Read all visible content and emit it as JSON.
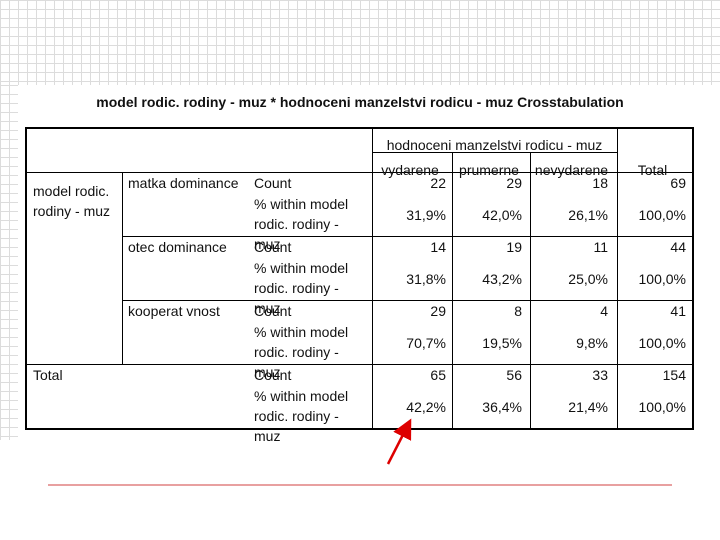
{
  "title": "model rodic. rodiny - muz * hodnoceni manzelstvi rodicu - muz Crosstabulation",
  "table": {
    "column_header": "hodnoceni manzelstvi rodicu - muz",
    "columns": [
      "vydarene",
      "prumerne",
      "nevydarene",
      "Total"
    ],
    "row_header": "model rodic. rodiny - muz",
    "groups": [
      {
        "label": "matka dominance",
        "rows": [
          {
            "stat": "Count",
            "cells": [
              "22",
              "29",
              "18",
              "69"
            ]
          },
          {
            "stat": "% within model rodic. rodiny - muz",
            "cells": [
              "31,9%",
              "42,0%",
              "26,1%",
              "100,0%"
            ]
          }
        ]
      },
      {
        "label": "otec dominance",
        "rows": [
          {
            "stat": "Count",
            "cells": [
              "14",
              "19",
              "11",
              "44"
            ]
          },
          {
            "stat": "% within model rodic. rodiny - muz",
            "cells": [
              "31,8%",
              "43,2%",
              "25,0%",
              "100,0%"
            ]
          }
        ]
      },
      {
        "label": "kooperat vnost",
        "rows": [
          {
            "stat": "Count",
            "cells": [
              "29",
              "8",
              "4",
              "41"
            ]
          },
          {
            "stat": "% within model rodic. rodiny - muz",
            "cells": [
              "70,7%",
              "19,5%",
              "9,8%",
              "100,0%"
            ]
          }
        ]
      },
      {
        "label": "Total",
        "rows": [
          {
            "stat": "Count",
            "cells": [
              "65",
              "56",
              "33",
              "154"
            ]
          },
          {
            "stat": "% within model rodic. rodiny - muz",
            "cells": [
              "42,2%",
              "36,4%",
              "21,4%",
              "100,0%"
            ]
          }
        ]
      }
    ]
  }
}
